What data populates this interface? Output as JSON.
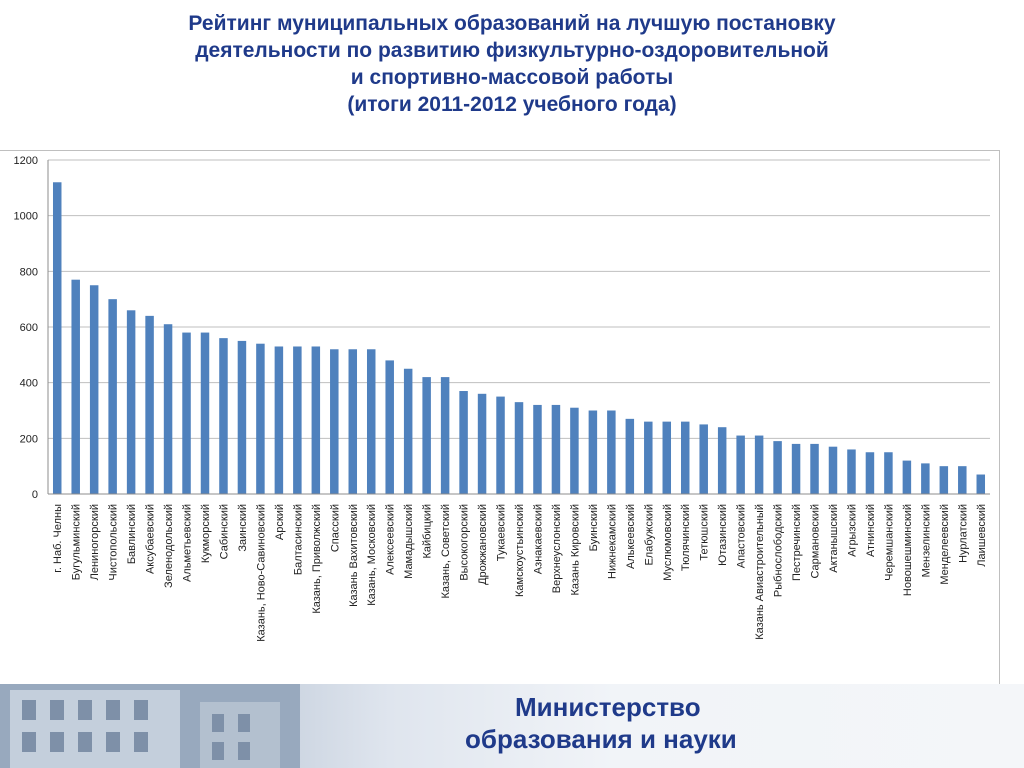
{
  "title": {
    "lines": [
      "Рейтинг муниципальных образований на лучшую постановку",
      "деятельности по развитию физкультурно-оздоровительной",
      "и спортивно-массовой работы",
      "(итоги 2011-2012  учебного года)"
    ]
  },
  "footer": {
    "logo_line1": "Министерство",
    "logo_line2": "образования и науки"
  },
  "chart_data": {
    "type": "bar",
    "ylim": [
      0,
      1200
    ],
    "yticks": [
      0,
      200,
      400,
      600,
      800,
      1000,
      1200
    ],
    "grid": true,
    "bar_color": "#4f81bd",
    "categories": [
      "г. Наб. Челны",
      "Бугульминский",
      "Лениногорский",
      "Чистопольский",
      "Бавлинский",
      "Аксубаевский",
      "Зеленодольский",
      "Альметьевский",
      "Кукморский",
      "Сабинский",
      "Заинский",
      "Казань, Ново-Савиновский",
      "Арский",
      "Балтасинский",
      "Казань, Приволжский",
      "Спасский",
      "Казань Вахитовский",
      "Казань, Московский",
      "Алексеевский",
      "Мамадышский",
      "Кайбицкий",
      "Казань, Советский",
      "Высокогорский",
      "Дрожжановский",
      "Тукаевский",
      "Камскоустьинский",
      "Азнакаевский",
      "Верхнеуслонский",
      "Казань Кировский",
      "Буинский",
      "Нижнекамский",
      "Алькеевский",
      "Елабужский",
      "Муслюмовский",
      "Тюлячинский",
      "Тетюшский",
      "Ютазинский",
      "Апастовский",
      "Казань Авиастроительный",
      "Рыбнослободский",
      "Пестречинский",
      "Сармановский",
      "Актанышский",
      "Агрызский",
      "Атнинский",
      "Черемшанский",
      "Новошешминский",
      "Мензелинский",
      "Менделеевский",
      "Нурлатский",
      "Лаишевский"
    ],
    "values": [
      1120,
      770,
      750,
      700,
      660,
      640,
      610,
      580,
      580,
      560,
      550,
      540,
      530,
      530,
      530,
      520,
      520,
      520,
      480,
      450,
      420,
      420,
      370,
      360,
      350,
      330,
      320,
      320,
      310,
      300,
      300,
      270,
      260,
      260,
      260,
      250,
      240,
      210,
      210,
      190,
      180,
      180,
      170,
      160,
      150,
      150,
      120,
      110,
      100,
      100,
      70
    ]
  }
}
